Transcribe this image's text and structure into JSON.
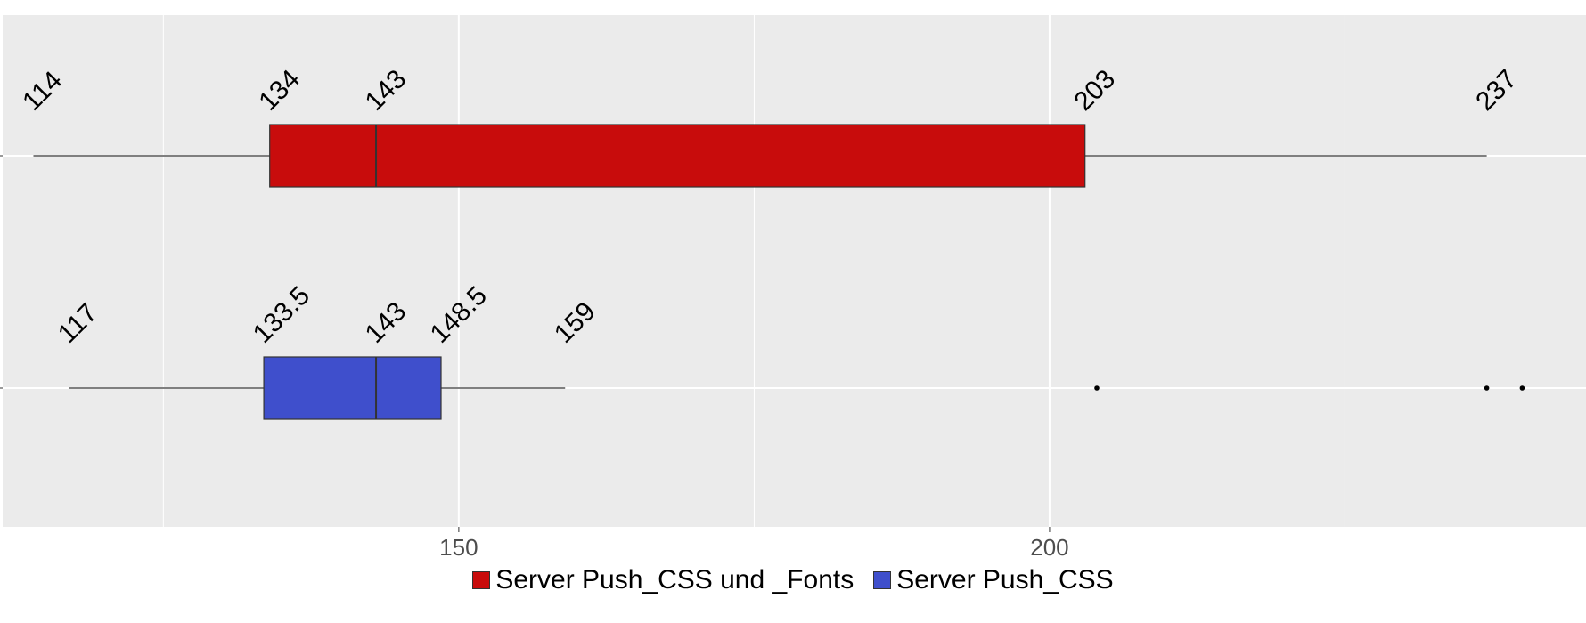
{
  "chart_data": {
    "type": "boxplot",
    "orientation": "horizontal",
    "title": "",
    "xlabel": "",
    "ylabel": "",
    "xlim": [
      111.4,
      245.4
    ],
    "x_ticks": [
      150,
      200
    ],
    "x_tick_labels": [
      "150",
      "200"
    ],
    "x_minor_ticks": [
      125,
      175,
      225
    ],
    "grid": true,
    "legend_position": "bottom",
    "series": [
      {
        "name": "Server Push_CSS und _Fonts",
        "color": "#c80c0c",
        "whisker_low": 114,
        "q1": 134,
        "median": 143,
        "q3": 203,
        "whisker_high": 237,
        "outliers": [],
        "labels": [
          "114",
          "134",
          "143",
          "203",
          "237"
        ]
      },
      {
        "name": "Server Push_CSS",
        "color": "#3f4fcc",
        "whisker_low": 117,
        "q1": 133.5,
        "median": 143,
        "q3": 148.5,
        "whisker_high": 159,
        "outliers": [
          204,
          237,
          240
        ],
        "labels": [
          "117",
          "133.5",
          "143",
          "148.5",
          "159"
        ]
      }
    ]
  }
}
